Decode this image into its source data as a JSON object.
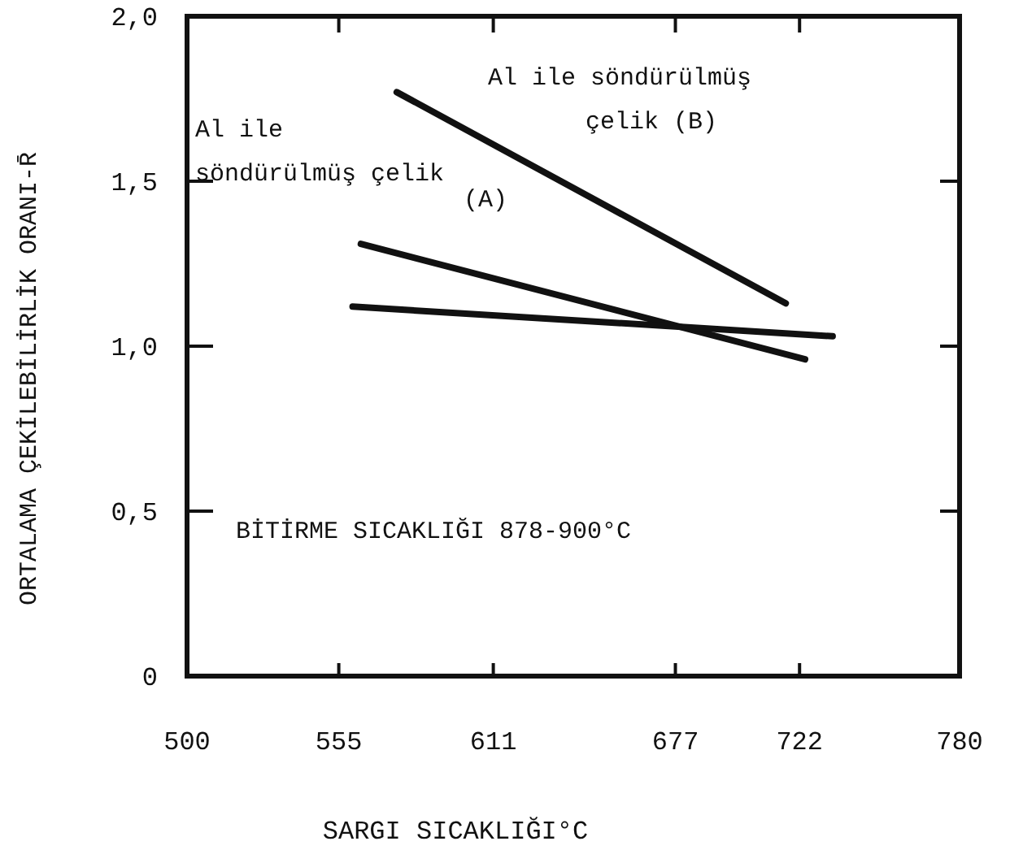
{
  "chart_data": {
    "type": "line",
    "xlabel": "SARGI SICAKLIĞI°C",
    "ylabel": "ORTALAMA ÇEKİLEBİLİRLİK ORANI-R̄",
    "xlim": [
      500,
      780
    ],
    "xticks": [
      500,
      555,
      611,
      677,
      722,
      780
    ],
    "ylim": [
      0,
      2
    ],
    "yticks": [
      {
        "value": 0,
        "label": "0"
      },
      {
        "value": 0.5,
        "label": "0,5"
      },
      {
        "value": 1,
        "label": "1,0"
      },
      {
        "value": 1.5,
        "label": "1,5"
      },
      {
        "value": 2,
        "label": "2,0"
      }
    ],
    "series": [
      {
        "color": "#111111",
        "x": [
          576,
          717
        ],
        "values": [
          1.77,
          1.13
        ]
      },
      {
        "color": "#111111",
        "x": [
          563,
          724
        ],
        "values": [
          1.31,
          0.96
        ]
      },
      {
        "color": "#111111",
        "x": [
          560,
          734
        ],
        "values": [
          1.12,
          1.03
        ]
      }
    ],
    "annotations": [
      "Al ile söndürülmüş çelik (B)",
      "Al ile söndürülmüş çelik (A)",
      "BİTİRME SICAKLIĞI 878-900°C"
    ],
    "grid": false,
    "line_style": "solid"
  }
}
